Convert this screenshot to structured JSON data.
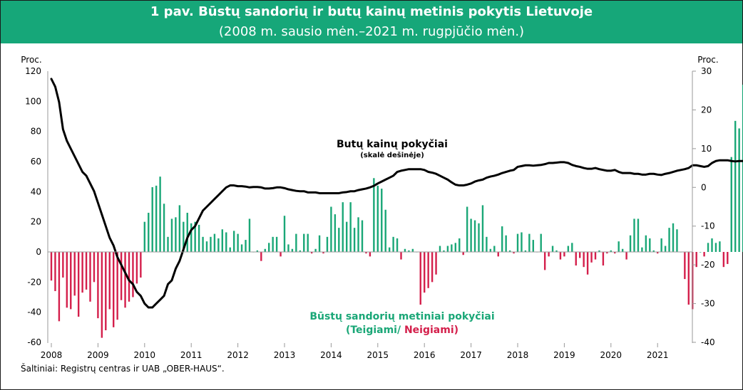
{
  "header": {
    "title": "1 pav. Būstų sandorių ir butų kainų metinis pokytis Lietuvoje",
    "subtitle": "(2008 m. sausio mėn.–2021 m. rugpjūčio mėn.)"
  },
  "source": "Šaltiniai: Registrų centras ir UAB „OBER-HAUS“.",
  "colors": {
    "header_bg": "#16a779",
    "positive": "#1aa777",
    "negative": "#d41f4b",
    "line": "#000000"
  },
  "chart_data": {
    "type": "bar+line",
    "x_start": "2008-01",
    "x_end": "2021-08",
    "x_tick_labels": [
      "2008",
      "2009",
      "2010",
      "2011",
      "2012",
      "2013",
      "2014",
      "2015",
      "2016",
      "2017",
      "2018",
      "2019",
      "2020",
      "2021"
    ],
    "left_axis": {
      "label": "Proc.",
      "range": [
        -60,
        120
      ],
      "ticks": [
        -60,
        -40,
        -20,
        0,
        20,
        40,
        60,
        80,
        100,
        120
      ]
    },
    "right_axis": {
      "label": "Proc.",
      "range": [
        -40,
        30
      ],
      "ticks": [
        -40,
        -30,
        -20,
        -10,
        0,
        10,
        20,
        30
      ]
    },
    "bars": {
      "label": "Būstų sandorių metiniai pokyčiai",
      "legend_open": "(Teigiami/",
      "legend_close": "Neigiami)",
      "axis": "left",
      "values": [
        -19,
        -26,
        -46,
        -17,
        -37,
        -38,
        -29,
        -43,
        -27,
        -25,
        -33,
        -20,
        -44,
        -57,
        -52,
        -38,
        -50,
        -45,
        -32,
        -37,
        -33,
        -30,
        -21,
        -17,
        20,
        26,
        43,
        44,
        50,
        32,
        10,
        22,
        23,
        31,
        20,
        26,
        19,
        20,
        18,
        10,
        7,
        10,
        12,
        9,
        15,
        13,
        3,
        14,
        12,
        5,
        8,
        22,
        0,
        1,
        -6,
        2,
        6,
        10,
        10,
        -3,
        24,
        5,
        2,
        12,
        1,
        12,
        12,
        -1,
        2,
        11,
        -1,
        10,
        30,
        25,
        16,
        33,
        20,
        33,
        16,
        23,
        21,
        -1,
        -3,
        49,
        44,
        42,
        28,
        3,
        10,
        9,
        -5,
        2,
        1,
        2,
        0,
        -35,
        -27,
        -24,
        -20,
        -15,
        4,
        1,
        4,
        5,
        6,
        9,
        -2,
        30,
        22,
        21,
        19,
        31,
        10,
        2,
        4,
        -3,
        17,
        11,
        1,
        -1,
        12,
        13,
        1,
        12,
        8,
        0,
        12,
        -12,
        -3,
        4,
        1,
        -5,
        -3,
        4,
        6,
        -9,
        -4,
        -10,
        -15,
        -7,
        -5,
        1,
        -9,
        -1,
        1,
        -1,
        7,
        2,
        -5,
        11,
        22,
        22,
        3,
        11,
        9,
        1,
        -1,
        9,
        4,
        16,
        19,
        15,
        0,
        -18,
        -35,
        -38,
        -10,
        0,
        -3,
        6,
        9,
        6,
        7,
        -10,
        -8,
        63,
        87,
        82,
        111,
        50,
        13
      ]
    },
    "line": {
      "label": "Butų kainų pokyčiai",
      "sublabel": "(skalė dešinėje)",
      "axis": "right",
      "values": [
        28,
        26,
        22,
        15,
        12,
        10,
        8,
        6,
        4,
        3,
        1,
        -1,
        -4,
        -7,
        -10,
        -13,
        -15,
        -18,
        -20,
        -22,
        -24,
        -25,
        -27,
        -28,
        -30,
        -31,
        -31,
        -30,
        -29,
        -28,
        -25,
        -24,
        -21,
        -19,
        -16,
        -13,
        -11,
        -10,
        -8,
        -6,
        -5,
        -4,
        -3,
        -2,
        -1,
        0,
        0.5,
        0.5,
        0.3,
        0.3,
        0.2,
        0,
        0.1,
        0.1,
        0,
        -0.3,
        -0.3,
        -0.2,
        0,
        0,
        -0.2,
        -0.5,
        -0.7,
        -0.9,
        -1,
        -1,
        -1.3,
        -1.3,
        -1.3,
        -1.5,
        -1.5,
        -1.5,
        -1.5,
        -1.5,
        -1.5,
        -1.3,
        -1.2,
        -1,
        -1,
        -0.7,
        -0.5,
        -0.3,
        0,
        0.4,
        1,
        1.5,
        2,
        2.5,
        3,
        4,
        4.3,
        4.5,
        4.7,
        4.7,
        4.7,
        4.7,
        4.5,
        4,
        3.8,
        3.5,
        3,
        2.5,
        2,
        1.3,
        0.7,
        0.5,
        0.5,
        0.7,
        1,
        1.5,
        1.8,
        2,
        2.5,
        2.8,
        3,
        3.3,
        3.7,
        4,
        4.3,
        4.5,
        5.3,
        5.5,
        5.7,
        5.7,
        5.6,
        5.7,
        5.8,
        6,
        6.3,
        6.3,
        6.4,
        6.5,
        6.5,
        6.3,
        5.8,
        5.5,
        5.3,
        5,
        4.8,
        4.8,
        5,
        4.7,
        4.5,
        4.3,
        4.3,
        4.5,
        4,
        3.7,
        3.7,
        3.7,
        3.5,
        3.5,
        3.3,
        3.3,
        3.5,
        3.5,
        3.3,
        3.2,
        3.5,
        3.7,
        4,
        4.3,
        4.5,
        4.7,
        5,
        5.7,
        5.7,
        5.5,
        5.3,
        5.5,
        6.3,
        6.8,
        7,
        7,
        7,
        6.8,
        6.7,
        6.8,
        6.8,
        7,
        7.5,
        7.5,
        7.8,
        7.5,
        7,
        6.7,
        6.3,
        5.7,
        5,
        4.5,
        4.5,
        4.3,
        4.3,
        4.3,
        4.3,
        4.5,
        5,
        5.5,
        6,
        7,
        8.5,
        10,
        12,
        14,
        15,
        16,
        18
      ]
    }
  }
}
